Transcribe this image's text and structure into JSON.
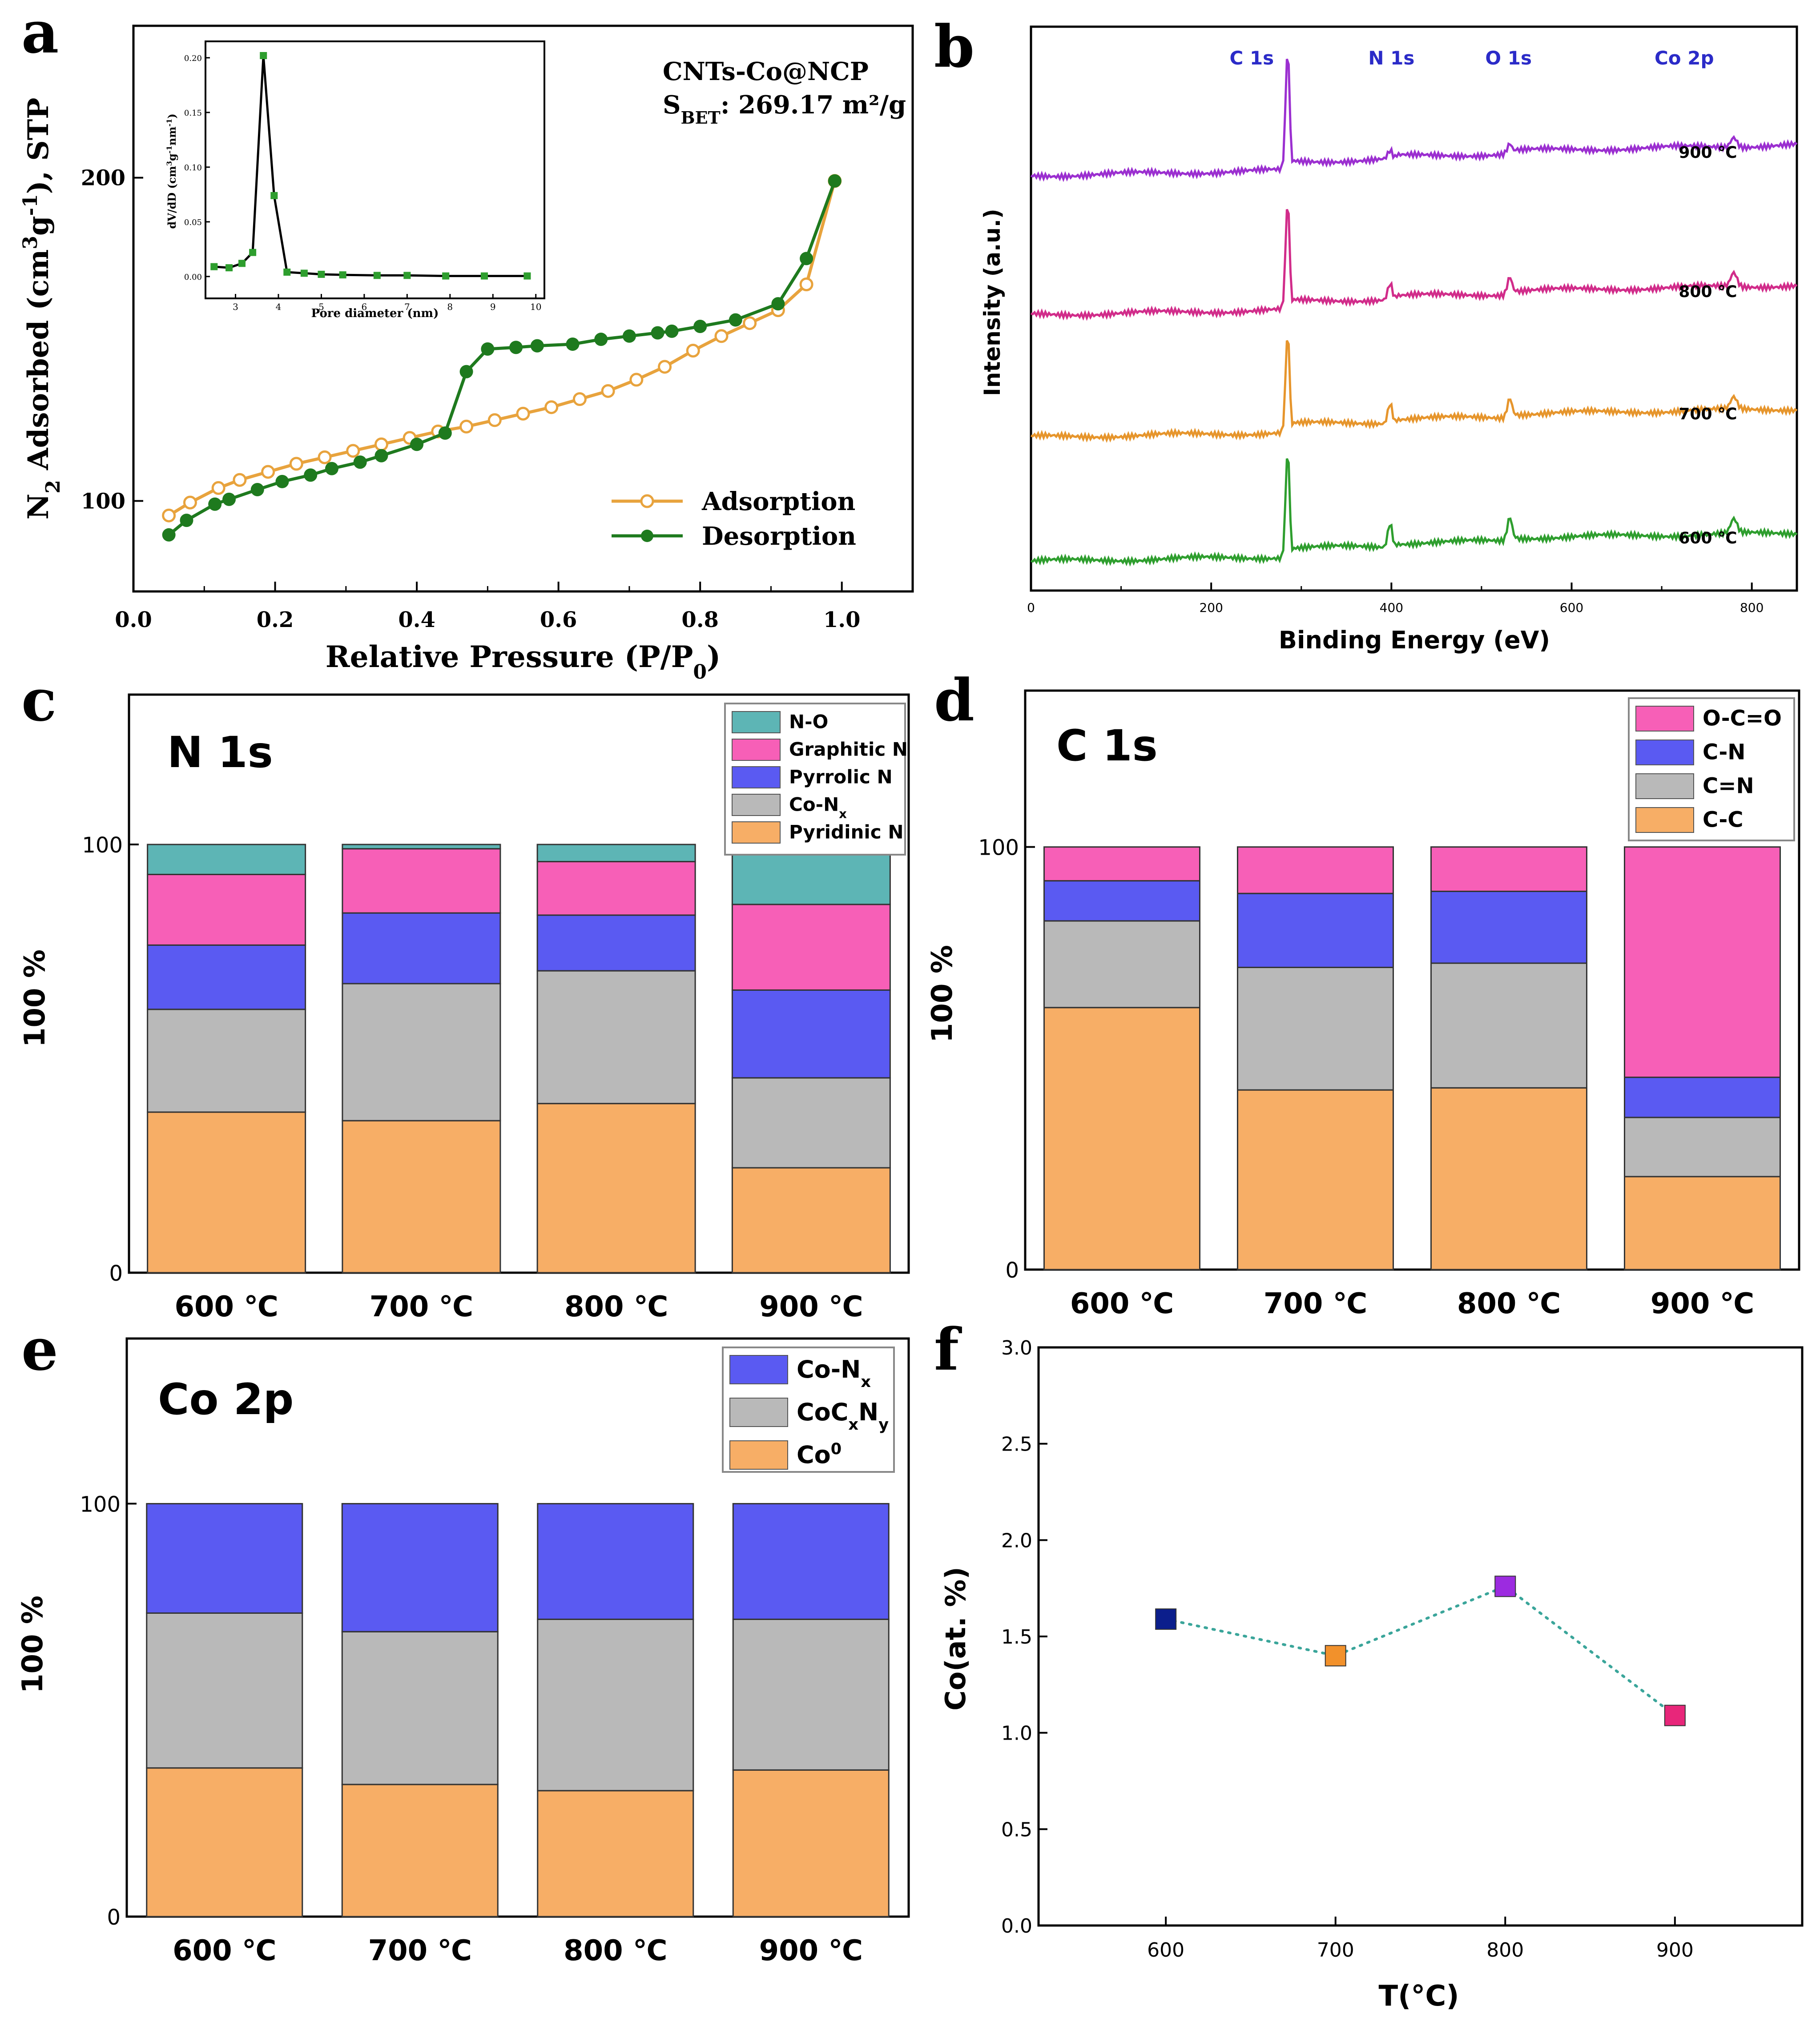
{
  "figure": {
    "panel_letters": [
      "a",
      "b",
      "c",
      "d",
      "e",
      "f"
    ]
  },
  "chart_data": [
    {
      "id": "a",
      "type": "line",
      "title": "",
      "annotation": {
        "sample": "CNTs-Co@NCP",
        "sbet_label": "S",
        "sbet_sub": "BET",
        "sbet_value": ": 269.17 m²/g"
      },
      "xlabel": "Relative Pressure (P/P0)",
      "ylabel": "N2 Adsorbed (cm3g-1), STP",
      "xlim": [
        0,
        1.1
      ],
      "ylim": [
        72,
        247
      ],
      "xticks": [
        0.0,
        0.2,
        0.4,
        0.6,
        0.8,
        1.0
      ],
      "xtick_labels": [
        "0.0",
        "0.2",
        "0.4",
        "0.6",
        "0.8",
        "1.0"
      ],
      "yticks": [
        100,
        200
      ],
      "ytick_labels": [
        "100",
        "200"
      ],
      "legend": {
        "position": "bottom-right"
      },
      "series": [
        {
          "name": "Adsorption",
          "color": "#E8A33D",
          "marker": "open-circle",
          "x": [
            0.05,
            0.08,
            0.12,
            0.15,
            0.19,
            0.23,
            0.27,
            0.31,
            0.35,
            0.39,
            0.43,
            0.47,
            0.51,
            0.55,
            0.59,
            0.63,
            0.67,
            0.71,
            0.75,
            0.79,
            0.83,
            0.87,
            0.91,
            0.95,
            0.99
          ],
          "y": [
            95.5,
            99.5,
            104,
            106.5,
            109,
            111.5,
            113.5,
            115.5,
            117.5,
            119.5,
            121.5,
            123,
            125,
            127,
            129,
            131.5,
            134,
            137.5,
            141.5,
            146.5,
            151,
            155,
            159,
            167,
            199
          ]
        },
        {
          "name": "Desorption",
          "color": "#1E7A1E",
          "marker": "filled-circle",
          "x": [
            0.05,
            0.075,
            0.115,
            0.135,
            0.175,
            0.21,
            0.25,
            0.28,
            0.32,
            0.35,
            0.4,
            0.44,
            0.47,
            0.5,
            0.54,
            0.57,
            0.62,
            0.66,
            0.7,
            0.74,
            0.76,
            0.8,
            0.85,
            0.91,
            0.95,
            0.99
          ],
          "y": [
            89.5,
            94,
            99,
            100.5,
            103.5,
            106,
            108,
            110,
            112,
            114,
            117.5,
            121,
            140,
            147,
            147.5,
            148,
            148.5,
            150,
            151,
            152,
            152.5,
            154,
            156,
            161,
            175,
            199
          ]
        }
      ],
      "inset": {
        "xlabel": "Pore diameter (nm)",
        "ylabel": "dV/dD (cm3g-1nm-1)",
        "xlim": [
          2.3,
          10.2
        ],
        "ylim": [
          -0.02,
          0.215
        ],
        "xticks": [
          3,
          4,
          5,
          6,
          7,
          8,
          9,
          10
        ],
        "yticks": [
          0.0,
          0.05,
          0.1,
          0.15,
          0.2
        ],
        "ytick_labels": [
          "0.00",
          "0.05",
          "0.10",
          "0.15",
          "0.20"
        ],
        "x": [
          2.5,
          2.85,
          3.15,
          3.4,
          3.65,
          3.9,
          4.2,
          4.6,
          5.0,
          5.5,
          6.3,
          7.0,
          7.9,
          8.8,
          9.8
        ],
        "y": [
          0.009,
          0.008,
          0.012,
          0.022,
          0.202,
          0.074,
          0.004,
          0.003,
          0.002,
          0.0015,
          0.001,
          0.001,
          0.0005,
          0.0005,
          0.0005
        ]
      }
    },
    {
      "id": "b",
      "type": "line",
      "xlabel": "Binding Energy (eV)",
      "ylabel": "Intensity (a.u.)",
      "xlim": [
        0,
        850
      ],
      "xticks": [
        0,
        200,
        400,
        600,
        800
      ],
      "xtick_labels": [
        "0",
        "200",
        "400",
        "600",
        "800"
      ],
      "peak_labels": [
        {
          "text": "C 1s",
          "x": 245
        },
        {
          "text": "N 1s",
          "x": 400
        },
        {
          "text": "O 1s",
          "x": 530
        },
        {
          "text": "Co 2p",
          "x": 725
        }
      ],
      "peaks": {
        "C": 284.8,
        "N": 398.5,
        "O": 531.5,
        "Co": 780
      },
      "series": [
        {
          "name": "900 ℃",
          "color": "#9B2FD0",
          "base": 18,
          "rise": 0.13,
          "amps": {
            "C": 30,
            "N": 2,
            "O": 2.5,
            "Co": 2.5
          }
        },
        {
          "name": "800 ℃",
          "color": "#D12C8A",
          "base": 44,
          "rise": 0.12,
          "amps": {
            "C": 27,
            "N": 4,
            "O": 4.5,
            "Co": 3.5
          }
        },
        {
          "name": "700 ℃",
          "color": "#E6952C",
          "base": 66,
          "rise": 0.11,
          "amps": {
            "C": 25,
            "N": 5,
            "O": 5,
            "Co": 3
          }
        },
        {
          "name": "600 ℃",
          "color": "#2E9E2E",
          "base": 90,
          "rise": 0.11,
          "amps": {
            "C": 27,
            "N": 6,
            "O": 6,
            "Co": 3.5
          }
        }
      ]
    },
    {
      "id": "c",
      "type": "bar",
      "title": "N 1s",
      "ylabel": "100 %",
      "ylim": [
        0,
        135
      ],
      "yticks": [
        0,
        100
      ],
      "categories": [
        "600 ℃",
        "700 ℃",
        "800 ℃",
        "900 ℃"
      ],
      "series": [
        {
          "name": "Pyridinic N",
          "color": "#F7AE66",
          "values": [
            37.5,
            35.5,
            39.5,
            24.5
          ]
        },
        {
          "name": "Co-Nx",
          "color": "#B9B9B9",
          "values": [
            24,
            32,
            31,
            21
          ]
        },
        {
          "name": "Pyrrolic N",
          "color": "#5A5AF2",
          "values": [
            15,
            16.5,
            13,
            20.5
          ]
        },
        {
          "name": "Graphitic N",
          "color": "#F75FB7",
          "values": [
            16.5,
            15,
            12.5,
            20
          ]
        },
        {
          "name": "N-O",
          "color": "#5DB5B5",
          "values": [
            7,
            1,
            4,
            14
          ]
        }
      ],
      "legend_order": [
        "N-O",
        "Graphitic N",
        "Pyrrolic N",
        "Co-Nx",
        "Pyridinic N"
      ]
    },
    {
      "id": "d",
      "type": "bar",
      "title": "C 1s",
      "ylabel": "100 %",
      "ylim": [
        0,
        137
      ],
      "yticks": [
        0,
        100
      ],
      "categories": [
        "600 ℃",
        "700 ℃",
        "800 ℃",
        "900 ℃"
      ],
      "series": [
        {
          "name": "C-C",
          "color": "#F7AE66",
          "values": [
            62,
            42.5,
            43,
            22
          ]
        },
        {
          "name": "C=N",
          "color": "#B9B9B9",
          "values": [
            20.5,
            29,
            29.5,
            14
          ]
        },
        {
          "name": "C-N",
          "color": "#5A5AF2",
          "values": [
            9.5,
            17.5,
            17,
            9.5
          ]
        },
        {
          "name": "O-C=O",
          "color": "#F75FB7",
          "values": [
            8,
            11,
            10.5,
            54.5
          ]
        }
      ],
      "legend_order": [
        "O-C=O",
        "C-N",
        "C=N",
        "C-C"
      ]
    },
    {
      "id": "e",
      "type": "bar",
      "title": "Co 2p",
      "ylabel": "100 %",
      "ylim": [
        0,
        140
      ],
      "yticks": [
        0,
        100
      ],
      "categories": [
        "600 ℃",
        "700 ℃",
        "800 ℃",
        "900 ℃"
      ],
      "series": [
        {
          "name": "Co0",
          "color": "#F7AE66",
          "values": [
            36,
            32,
            30.5,
            35.5
          ]
        },
        {
          "name": "CoCxNy",
          "color": "#B9B9B9",
          "values": [
            37.5,
            37,
            41.5,
            36.5
          ]
        },
        {
          "name": "Co-Nx",
          "color": "#5A5AF2",
          "values": [
            26.5,
            31,
            28,
            28
          ]
        }
      ],
      "legend_order": [
        "Co-Nx",
        "CoCxNy",
        "Co0"
      ]
    },
    {
      "id": "f",
      "type": "scatter",
      "xlabel": "T(°C)",
      "ylabel": "Co(at. %)",
      "xlim": [
        525,
        975
      ],
      "ylim": [
        0,
        3.0
      ],
      "xticks": [
        600,
        700,
        800,
        900
      ],
      "xtick_labels": [
        "600",
        "700",
        "800",
        "900"
      ],
      "yticks": [
        0,
        0.5,
        1.0,
        1.5,
        2.0,
        2.5,
        3.0
      ],
      "ytick_labels": [
        "0.0",
        "0.5",
        "1.0",
        "1.5",
        "2.0",
        "2.5",
        "3.0"
      ],
      "x": [
        600,
        700,
        800,
        900
      ],
      "y": [
        1.59,
        1.4,
        1.76,
        1.09
      ],
      "point_colors": [
        "#0B1E8C",
        "#F2912B",
        "#9C2BE0",
        "#E8267A"
      ],
      "line_color": "#3AA59A"
    }
  ]
}
